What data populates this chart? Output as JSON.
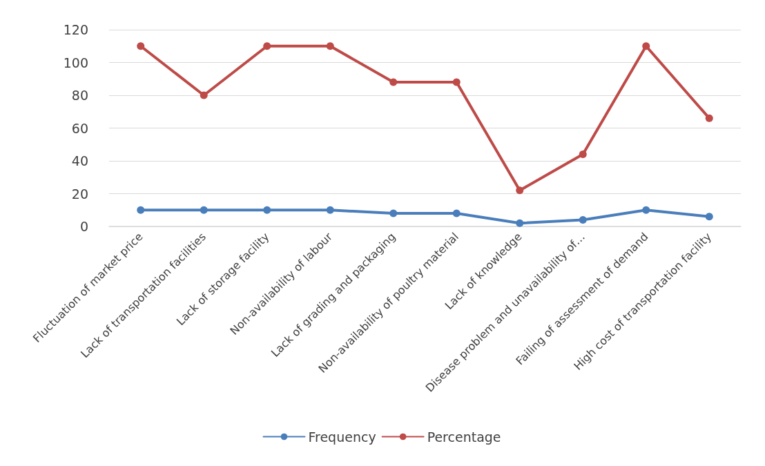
{
  "chart_data": {
    "type": "line",
    "categories": [
      "Fluctuation of market price",
      "Lack of transportation facilities",
      "Lack of storage facility",
      "Non-availability of labour",
      "Lack of grading and packaging",
      "Non-availability of poultry material",
      "Lack of knowledge",
      "Disease problem and unavailability of…",
      "Failing of assessment of demand",
      "High cost of transportation facility"
    ],
    "series": [
      {
        "name": "Frequency",
        "color": "#4a7ebb",
        "values": [
          10,
          10,
          10,
          10,
          8,
          8,
          2,
          4,
          10,
          6
        ]
      },
      {
        "name": "Percentage",
        "color": "#be4b48",
        "values": [
          110,
          80,
          110,
          110,
          88,
          88,
          22,
          44,
          110,
          66
        ]
      }
    ],
    "ylim": [
      0,
      120
    ],
    "yticks": [
      0,
      20,
      40,
      60,
      80,
      100,
      120
    ],
    "grid": "y",
    "legend": "bottom",
    "marker": "circle",
    "line_style": "solid"
  }
}
